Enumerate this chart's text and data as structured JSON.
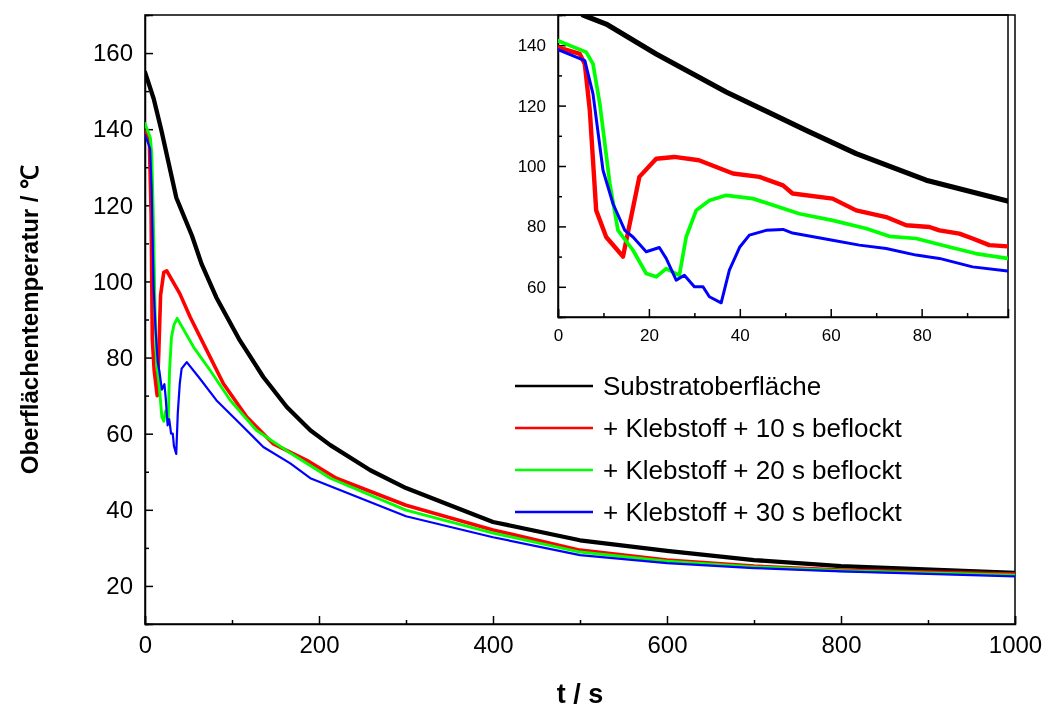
{
  "chart_data": [
    {
      "type": "line",
      "xlabel": "t / s",
      "ylabel": "Oberflächentemperatur / ℃",
      "xlim": [
        0,
        1000
      ],
      "ylim": [
        10,
        170
      ],
      "xticks": [
        0,
        {
          "value": 100,
          "label": null
        },
        200,
        {
          "value": 300,
          "label": null
        },
        400,
        {
          "value": 500,
          "label": null
        },
        600,
        {
          "value": 700,
          "label": null
        },
        800,
        {
          "value": 900,
          "label": null
        },
        1000
      ],
      "yticks": [
        {
          "value": 10,
          "label": null
        },
        20,
        {
          "value": 30,
          "label": null
        },
        40,
        {
          "value": 50,
          "label": null
        },
        60,
        {
          "value": 70,
          "label": null
        },
        80,
        {
          "value": 90,
          "label": null
        },
        100,
        {
          "value": 110,
          "label": null
        },
        120,
        {
          "value": 130,
          "label": null
        },
        140,
        {
          "value": 150,
          "label": null
        },
        160,
        {
          "value": 170,
          "label": null
        }
      ],
      "legend": "right",
      "grid": false,
      "series": [
        {
          "name": "Substratoberfläche",
          "color": "#000000",
          "x": [
            0,
            10,
            19,
            36,
            54,
            65,
            82,
            109,
            136,
            163,
            190,
            213,
            259,
            300,
            400,
            500,
            600,
            700,
            800,
            1000
          ],
          "values": [
            155,
            148,
            139.5,
            122,
            112,
            104.6,
            95.8,
            84.5,
            74.9,
            67,
            60.9,
            57,
            50.4,
            45.7,
            36.8,
            32,
            29.2,
            26.8,
            25.2,
            23.4
          ]
        },
        {
          "name": "+ Klebstoff + 10 s beflockt",
          "color": "#ff0000",
          "x": [
            0,
            5,
            7,
            8.4,
            10.6,
            14,
            15.8,
            17.9,
            21.6,
            25,
            40,
            52,
            71,
            90,
            117,
            147,
            186,
            220,
            300,
            400,
            500,
            600,
            700,
            800,
            1000
          ],
          "values": [
            139.3,
            137,
            118,
            85,
            76.5,
            70,
            81,
            96.4,
            102.4,
            102.8,
            96.8,
            90.6,
            81.9,
            73.2,
            64.4,
            57.4,
            53,
            48.3,
            41.2,
            34.7,
            29.4,
            26.8,
            25.2,
            24.2,
            23.1
          ]
        },
        {
          "name": "+ Klebstoff + 20 s beflockt",
          "color": "#00ff00",
          "x": [
            0,
            6.2,
            7.7,
            9.2,
            11.4,
            13.2,
            16.5,
            19.4,
            21.6,
            23.8,
            26.7,
            28.2,
            30.4,
            33.3,
            37,
            56,
            75,
            98,
            128,
            167,
            213,
            300,
            400,
            500,
            600,
            700,
            800,
            1000
          ],
          "values": [
            141.5,
            137.7,
            133.8,
            120.6,
            94.2,
            78.7,
            72.1,
            64.4,
            63.3,
            66,
            63.8,
            76.5,
            85.3,
            88.6,
            90.3,
            82.7,
            76.6,
            68.8,
            60.9,
            54.9,
            48.3,
            39.9,
            33.9,
            28.9,
            26.5,
            25,
            24,
            22.8
          ]
        },
        {
          "name": "+ Klebstoff + 30 s beflockt",
          "color": "#0000ff",
          "x": [
            0,
            5.9,
            7.7,
            9.9,
            12.1,
            14.7,
            16.5,
            19.4,
            22.3,
            23.8,
            26,
            27.8,
            30,
            31.9,
            33.3,
            35.9,
            37.7,
            40,
            42.1,
            48,
            63,
            82,
            109,
            136,
            167,
            190,
            300,
            400,
            500,
            600,
            700,
            800,
            1000
          ],
          "values": [
            138.5,
            134.9,
            123.9,
            98.6,
            87.5,
            78.7,
            76.5,
            71.6,
            73,
            69.4,
            62.2,
            63.8,
            60,
            60,
            56.7,
            54.7,
            65.5,
            73.2,
            77.1,
            78.8,
            74.5,
            68.8,
            62.7,
            56.5,
            52.2,
            48.3,
            38.3,
            32.8,
            28.1,
            26,
            24.7,
            23.8,
            22.5
          ]
        }
      ]
    },
    {
      "type": "line",
      "xlim": [
        0,
        99
      ],
      "ylim": [
        50,
        150
      ],
      "xticks": [
        0,
        {
          "value": 10,
          "label": null
        },
        20,
        {
          "value": 30,
          "label": null
        },
        40,
        {
          "value": 50,
          "label": null
        },
        60,
        {
          "value": 70,
          "label": null
        },
        80,
        {
          "value": 90,
          "label": null
        }
      ],
      "yticks": [
        {
          "value": 50,
          "label": null
        },
        60,
        {
          "value": 70,
          "label": null
        },
        80,
        {
          "value": 90,
          "label": null
        },
        100,
        {
          "value": 110,
          "label": null
        },
        120,
        {
          "value": 130,
          "label": null
        },
        140,
        {
          "value": 150,
          "label": null
        }
      ],
      "grid": false,
      "series": [
        {
          "color": "#000000",
          "x": [
            5.5,
            10.6,
            21.6,
            37,
            54.6,
            65.6,
            81,
            98.9
          ],
          "values": [
            150,
            147,
            137.1,
            124.5,
            111.8,
            104.1,
            95.3,
            88.4
          ]
        },
        {
          "color": "#ff0000",
          "x": [
            0,
            4.8,
            5.9,
            7,
            8.4,
            10.6,
            12.5,
            14.3,
            15.8,
            17.9,
            21.6,
            25.6,
            31,
            38.5,
            44.3,
            49.5,
            51.6,
            60.4,
            65.6,
            72.2,
            76.6,
            81.7,
            83.9,
            88.3,
            91.2,
            94.9,
            98.9
          ],
          "values": [
            139.3,
            137.1,
            133.8,
            118.4,
            85.3,
            76.5,
            73.2,
            70,
            81,
            96.4,
            102.4,
            103,
            101.9,
            97.5,
            96.4,
            93.6,
            90.9,
            89.2,
            85.3,
            83.1,
            80.4,
            79.8,
            78.7,
            77.6,
            76,
            73.8,
            73.4
          ]
        },
        {
          "color": "#00ff00",
          "x": [
            0,
            6.2,
            7.7,
            9.2,
            11.4,
            13.2,
            16.5,
            19.4,
            21.6,
            23.8,
            26.7,
            28.2,
            30.4,
            33.3,
            37,
            42.9,
            53.1,
            60.4,
            67.8,
            72.9,
            78.8,
            86.1,
            91.9,
            98.9
          ],
          "values": [
            141.5,
            137.7,
            133.8,
            120.6,
            94.2,
            78.7,
            72.1,
            64.4,
            63.3,
            66,
            63.8,
            76.5,
            85.3,
            88.6,
            90.3,
            89.2,
            84.2,
            82,
            79.3,
            76.7,
            76,
            73.2,
            71,
            69.4
          ]
        },
        {
          "color": "#0000ff",
          "x": [
            0,
            5.9,
            7.7,
            9.9,
            12.1,
            14.7,
            16.5,
            19.4,
            22.3,
            23.8,
            26,
            27.8,
            30,
            31.9,
            33.3,
            35.9,
            37.7,
            40,
            42.1,
            45.8,
            49.5,
            51.6,
            60.4,
            66.3,
            72.2,
            78.8,
            83.9,
            91.2,
            98.9
          ],
          "values": [
            138.5,
            134.9,
            123.9,
            98.6,
            87.5,
            78.7,
            76.5,
            71.6,
            73,
            69.4,
            62.2,
            63.8,
            60,
            60,
            56.7,
            54.7,
            65.5,
            73.2,
            77.1,
            78.7,
            79,
            77.8,
            75.4,
            73.8,
            72.7,
            70.5,
            69.4,
            66.6,
            65.2
          ]
        }
      ]
    }
  ]
}
